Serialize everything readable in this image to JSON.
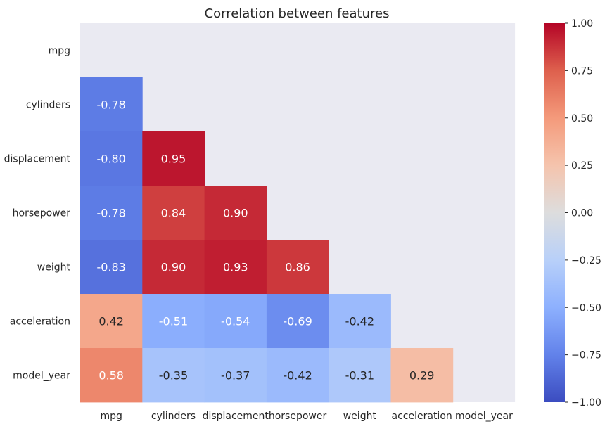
{
  "chart_data": {
    "type": "heatmap",
    "title": "Correlation between features",
    "xlabel": "",
    "ylabel": "",
    "variables": [
      "mpg",
      "cylinders",
      "displacement",
      "horsepower",
      "weight",
      "acceleration",
      "model_year"
    ],
    "mask": "upper-triangle-including-diagonal",
    "values": [
      [
        null,
        null,
        null,
        null,
        null,
        null,
        null
      ],
      [
        -0.78,
        null,
        null,
        null,
        null,
        null,
        null
      ],
      [
        -0.8,
        0.95,
        null,
        null,
        null,
        null,
        null
      ],
      [
        -0.78,
        0.84,
        0.9,
        null,
        null,
        null,
        null
      ],
      [
        -0.83,
        0.9,
        0.93,
        0.86,
        null,
        null,
        null
      ],
      [
        0.42,
        -0.51,
        -0.54,
        -0.69,
        -0.42,
        null,
        null
      ],
      [
        0.58,
        -0.35,
        -0.37,
        -0.42,
        -0.31,
        0.29,
        null
      ]
    ],
    "value_format": "0.00",
    "colorbar": {
      "colormap": "coolwarm",
      "range": [
        -1.0,
        1.0
      ],
      "ticks": [
        1.0,
        0.75,
        0.5,
        0.25,
        0.0,
        -0.25,
        -0.5,
        -0.75,
        -1.0
      ],
      "tick_labels": [
        "1.00",
        "0.75",
        "0.50",
        "0.25",
        "0.00",
        "−0.25",
        "−0.50",
        "−0.75",
        "−1.00"
      ]
    },
    "grid": false,
    "legend": "colorbar-right",
    "background_color": "#eaeaf2"
  }
}
